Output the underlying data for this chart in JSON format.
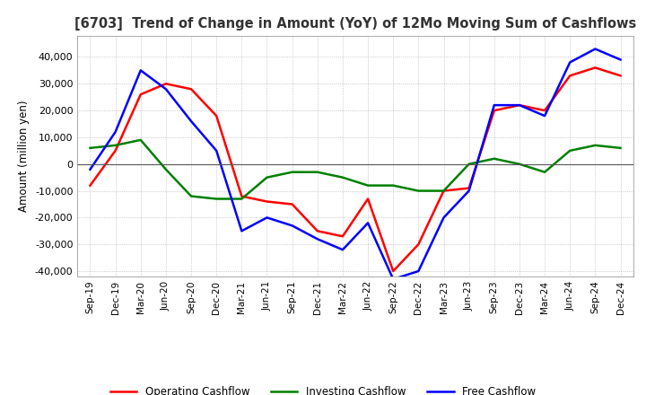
{
  "title": "[6703]  Trend of Change in Amount (YoY) of 12Mo Moving Sum of Cashflows",
  "ylabel": "Amount (million yen)",
  "ylim": [
    -42000,
    48000
  ],
  "yticks": [
    -40000,
    -30000,
    -20000,
    -10000,
    0,
    10000,
    20000,
    30000,
    40000
  ],
  "background_color": "#ffffff",
  "grid_color": "#aaaaaa",
  "x_labels": [
    "Sep-19",
    "Dec-19",
    "Mar-20",
    "Jun-20",
    "Sep-20",
    "Dec-20",
    "Mar-21",
    "Jun-21",
    "Sep-21",
    "Dec-21",
    "Mar-22",
    "Jun-22",
    "Sep-22",
    "Dec-22",
    "Mar-23",
    "Jun-23",
    "Sep-23",
    "Dec-23",
    "Mar-24",
    "Jun-24",
    "Sep-24",
    "Dec-24"
  ],
  "operating": [
    -8000,
    5000,
    26000,
    30000,
    28000,
    18000,
    -12000,
    -14000,
    -15000,
    -25000,
    -27000,
    -13000,
    -40000,
    -30000,
    -10000,
    -9000,
    20000,
    22000,
    20000,
    33000,
    36000,
    33000
  ],
  "investing": [
    6000,
    7000,
    9000,
    -2000,
    -12000,
    -13000,
    -13000,
    -5000,
    -3000,
    -3000,
    -5000,
    -8000,
    -8000,
    -10000,
    -10000,
    0,
    2000,
    0,
    -3000,
    5000,
    7000,
    6000
  ],
  "free": [
    -2000,
    12000,
    35000,
    28000,
    16000,
    5000,
    -25000,
    -20000,
    -23000,
    -28000,
    -32000,
    -22000,
    -43000,
    -40000,
    -20000,
    -10000,
    22000,
    22000,
    18000,
    38000,
    43000,
    39000
  ],
  "operating_color": "#ff0000",
  "investing_color": "#008000",
  "free_color": "#0000ff",
  "line_width": 1.8
}
